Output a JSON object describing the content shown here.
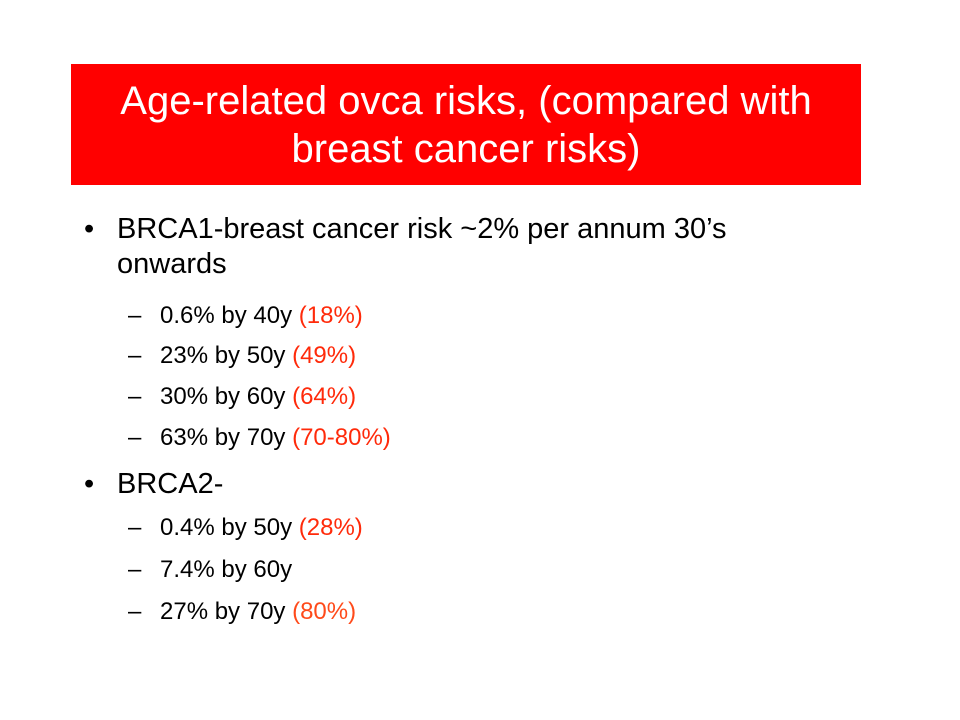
{
  "slide": {
    "title": "Age-related ovca risks, (compared with breast cancer risks)",
    "colors": {
      "title_bg": "#ff0000",
      "title_text": "#ffffff",
      "highlight": "#ff2a0a"
    },
    "bullets": [
      {
        "text": "BRCA1-breast cancer risk ~2% per annum 30’s onwards",
        "sub": [
          {
            "dash": "–",
            "text": "0.6% by 40y",
            "paren": "(18%)"
          },
          {
            "dash": "–",
            "text": "23% by 50y",
            "paren": "(49%)"
          },
          {
            "dash": "–",
            "text": "30% by 60y",
            "paren": "(64%)"
          },
          {
            "dash": "–",
            "text": "63% by 70y",
            "paren": "(70-80%)"
          }
        ]
      },
      {
        "text": "BRCA2-",
        "sub": [
          {
            "dash": "–",
            "text": "0.4% by 50y",
            "paren": "(28%)"
          },
          {
            "dash": "–",
            "text": "7.4% by 60y",
            "paren": ""
          },
          {
            "dash": "–",
            "text": "27% by 70y",
            "paren": "(80%)"
          }
        ]
      }
    ]
  }
}
